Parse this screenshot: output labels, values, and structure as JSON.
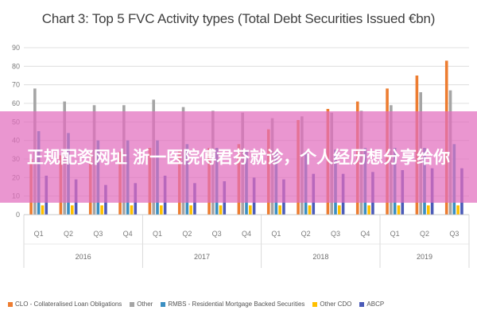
{
  "chart_data": {
    "type": "bar",
    "title": "Chart 3: Top 5 FVC Activity types (Total Debt Securities Issued €bn)",
    "xlabel": "",
    "ylabel": "",
    "ylim": [
      0,
      90
    ],
    "yticks": [
      0,
      10,
      20,
      30,
      40,
      50,
      60,
      70,
      80,
      90
    ],
    "grid": true,
    "legend_position": "bottom",
    "categories": [
      "Q1",
      "Q2",
      "Q3",
      "Q4",
      "Q1",
      "Q2",
      "Q3",
      "Q4",
      "Q1",
      "Q2",
      "Q3",
      "Q4",
      "Q1",
      "Q2",
      "Q3"
    ],
    "groups": [
      {
        "label": "2016",
        "count": 4
      },
      {
        "label": "2017",
        "count": 4
      },
      {
        "label": "2018",
        "count": 4
      },
      {
        "label": "2019",
        "count": 3
      }
    ],
    "series": [
      {
        "name": "CLO - Collateralised Loan Obligations",
        "color": "#ed7d31",
        "values": [
          30,
          32,
          33,
          34,
          36,
          35,
          36,
          38,
          46,
          51,
          57,
          61,
          68,
          75,
          83
        ]
      },
      {
        "name": "Other",
        "color": "#a5a5a5",
        "values": [
          68,
          61,
          59,
          59,
          62,
          58,
          56,
          55,
          52,
          53,
          55,
          56,
          59,
          66,
          67
        ]
      },
      {
        "name": "RMBS - Residential Mortgage Backed Securities",
        "color": "#3b8fc2",
        "values": [
          45,
          44,
          40,
          40,
          40,
          38,
          36,
          35,
          34,
          34,
          35,
          36,
          36,
          36,
          38
        ]
      },
      {
        "name": "Other CDO",
        "color": "#ffc000",
        "values": [
          5,
          5,
          5,
          5,
          5,
          5,
          5,
          5,
          5,
          5,
          5,
          5,
          5,
          5,
          5
        ]
      },
      {
        "name": "ABCP",
        "color": "#4b5bb8",
        "values": [
          21,
          19,
          16,
          17,
          21,
          17,
          18,
          20,
          19,
          22,
          22,
          23,
          24,
          25,
          25
        ]
      }
    ]
  },
  "overlay": {
    "text": "正规配资网址 浙一医院傅君芬就诊，个人经历想分享给你"
  }
}
